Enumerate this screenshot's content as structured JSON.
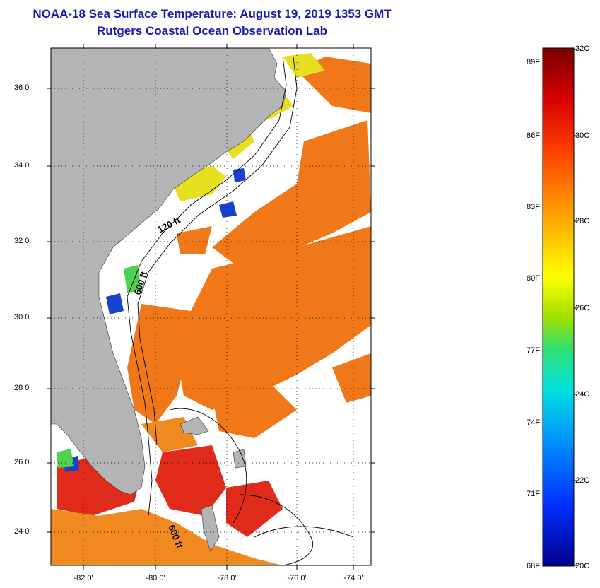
{
  "header": {
    "title_line_1": "NOAA-18 Sea Surface Temperature:  August 19, 2019 1353 GMT",
    "title_line_2": "Rutgers Coastal Ocean Observation Lab"
  },
  "map": {
    "latitude_labels": [
      "36 0'",
      "34 0'",
      "32 0'",
      "30 0'",
      "28 0'",
      "26 0'",
      "24 0'"
    ],
    "longitude_labels": [
      "-82 0'",
      "-80 0'",
      "-78 0'",
      "-76 0'",
      "-74 0'"
    ],
    "isobath_labels": [
      "120 ft",
      "600 ft",
      "600 ft"
    ],
    "colors": {
      "land": "#b4b4b4",
      "cloud": "#ffffff",
      "warm_water": "#f07818",
      "hot_water": "#e02a1a"
    }
  },
  "colorbar": {
    "fahrenheit_labels": [
      "89F",
      "86F",
      "83F",
      "80F",
      "77F",
      "74F",
      "71F",
      "68F"
    ],
    "celsius_labels": [
      "32C",
      "30C",
      "28C",
      "26C",
      "24C",
      "22C",
      "20C"
    ],
    "colors": [
      "#7a0000",
      "#d80000",
      "#ff4000",
      "#ff9000",
      "#ffd000",
      "#ffff00",
      "#a0e000",
      "#30e070",
      "#00e0e0",
      "#0090ff",
      "#0030ff",
      "#000090"
    ]
  }
}
